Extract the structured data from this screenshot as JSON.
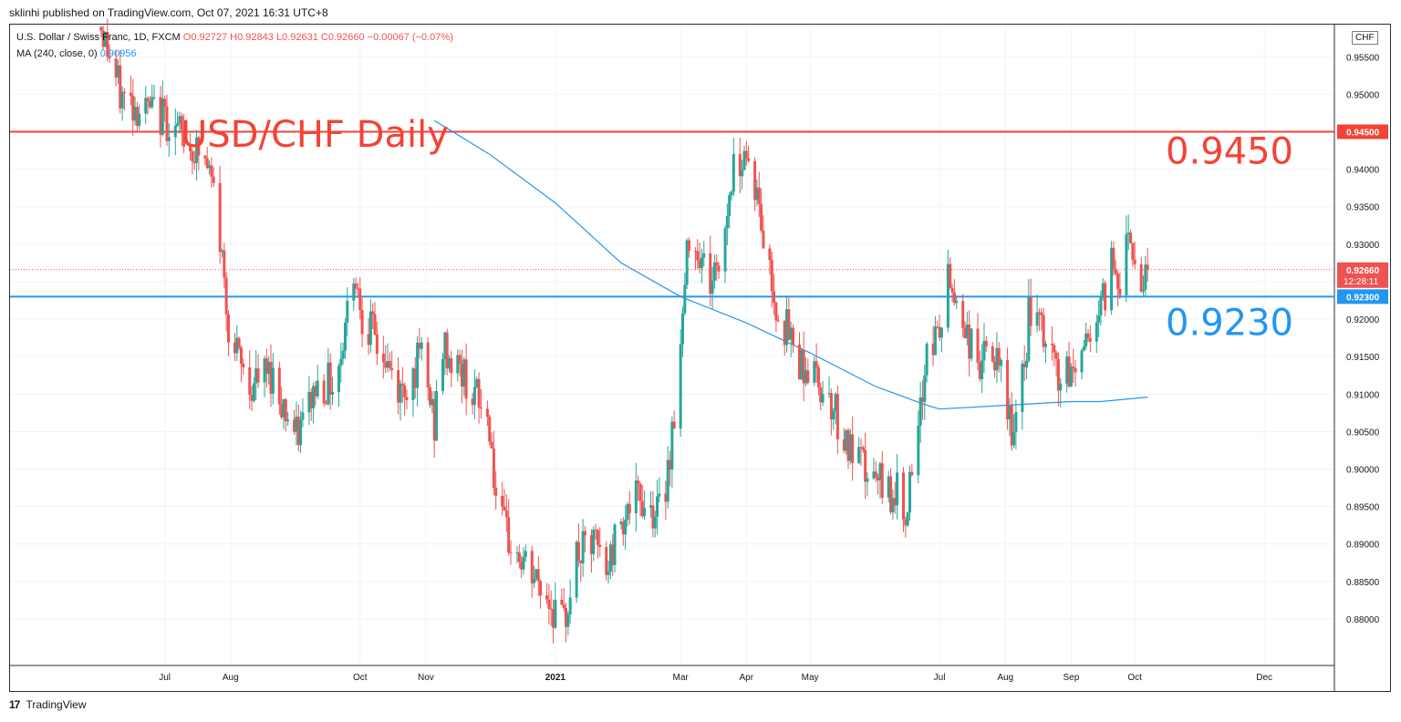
{
  "publish_line": "sklinhi published on TradingView.com, Oct 07, 2021 16:31 UTC+8",
  "legend": {
    "symbol": "U.S. Dollar / Swiss Franc, 1D, FXCM",
    "open": "O0.92727",
    "high": "H0.92843",
    "low": "L0.92631",
    "close": "C0.92660",
    "change": "−0.00067 (−0.07%)",
    "ma_label": "MA (240, close, 0)",
    "ma_value": "0.90956"
  },
  "currency_badge": "CHF",
  "footer": {
    "logo_glyph": "17",
    "brand": "TradingView"
  },
  "colors": {
    "up": "#26a69a",
    "down": "#ef5350",
    "ma": "#2196f3",
    "resistance": "#f44336",
    "support": "#2196f3"
  },
  "chart_data": {
    "type": "candlestick",
    "title": "USD/CHF Daily",
    "ylim": [
      0.8775,
      0.9585
    ],
    "y_ticks": [
      "0.95500",
      "0.95000",
      "0.94500",
      "0.94000",
      "0.93500",
      "0.93000",
      "0.92500",
      "0.92000",
      "0.91500",
      "0.91000",
      "0.90500",
      "0.90000",
      "0.89500",
      "0.89000",
      "0.88500",
      "0.88000"
    ],
    "x_ticks": [
      "Jul",
      "Aug",
      "Oct",
      "Nov",
      "2021",
      "Mar",
      "Apr",
      "May",
      "Jul",
      "Aug",
      "Sep",
      "Oct",
      "Dec"
    ],
    "horizontal_levels": [
      {
        "price": 0.945,
        "label": "0.9450",
        "axis_label": "0.94500",
        "color": "#f44336"
      },
      {
        "price": 0.923,
        "label": "0.9230",
        "axis_label": "0.92300",
        "color": "#2196f3"
      }
    ],
    "last_price": {
      "value": 0.9266,
      "label": "0.92660",
      "countdown": "12:28:11"
    },
    "price_path": [
      [
        "2020-06-01",
        0.959
      ],
      [
        "2020-06-10",
        0.95
      ],
      [
        "2020-06-20",
        0.948
      ],
      [
        "2020-07-01",
        0.947
      ],
      [
        "2020-07-10",
        0.944
      ],
      [
        "2020-07-20",
        0.941
      ],
      [
        "2020-07-25",
        0.936
      ],
      [
        "2020-07-29",
        0.925
      ],
      [
        "2020-08-01",
        0.917
      ],
      [
        "2020-08-10",
        0.911
      ],
      [
        "2020-08-20",
        0.913
      ],
      [
        "2020-09-01",
        0.904
      ],
      [
        "2020-09-10",
        0.911
      ],
      [
        "2020-09-20",
        0.912
      ],
      [
        "2020-09-28",
        0.927
      ],
      [
        "2020-10-02",
        0.921
      ],
      [
        "2020-10-10",
        0.916
      ],
      [
        "2020-10-20",
        0.91
      ],
      [
        "2020-10-30",
        0.915
      ],
      [
        "2020-11-05",
        0.906
      ],
      [
        "2020-11-09",
        0.916
      ],
      [
        "2020-11-20",
        0.912
      ],
      [
        "2020-12-01",
        0.906
      ],
      [
        "2020-12-05",
        0.893
      ],
      [
        "2020-12-15",
        0.888
      ],
      [
        "2020-12-28",
        0.883
      ],
      [
        "2021-01-05",
        0.879
      ],
      [
        "2021-01-10",
        0.888
      ],
      [
        "2021-01-20",
        0.89
      ],
      [
        "2021-01-25",
        0.886
      ],
      [
        "2021-02-01",
        0.894
      ],
      [
        "2021-02-10",
        0.896
      ],
      [
        "2021-02-20",
        0.894
      ],
      [
        "2021-02-25",
        0.905
      ],
      [
        "2021-03-01",
        0.916
      ],
      [
        "2021-03-05",
        0.932
      ],
      [
        "2021-03-10",
        0.929
      ],
      [
        "2021-03-15",
        0.925
      ],
      [
        "2021-03-20",
        0.928
      ],
      [
        "2021-03-25",
        0.939
      ],
      [
        "2021-03-31",
        0.943
      ],
      [
        "2021-04-05",
        0.938
      ],
      [
        "2021-04-10",
        0.929
      ],
      [
        "2021-04-15",
        0.922
      ],
      [
        "2021-04-25",
        0.915
      ],
      [
        "2021-05-01",
        0.913
      ],
      [
        "2021-05-10",
        0.91
      ],
      [
        "2021-05-20",
        0.902
      ],
      [
        "2021-06-01",
        0.898
      ],
      [
        "2021-06-10",
        0.897
      ],
      [
        "2021-06-15",
        0.895
      ],
      [
        "2021-06-20",
        0.9
      ],
      [
        "2021-06-25",
        0.917
      ],
      [
        "2021-07-01",
        0.918
      ],
      [
        "2021-07-05",
        0.925
      ],
      [
        "2021-07-10",
        0.922
      ],
      [
        "2021-07-15",
        0.917
      ],
      [
        "2021-07-20",
        0.914
      ],
      [
        "2021-07-25",
        0.916
      ],
      [
        "2021-08-01",
        0.91
      ],
      [
        "2021-08-05",
        0.904
      ],
      [
        "2021-08-10",
        0.913
      ],
      [
        "2021-08-12",
        0.921
      ],
      [
        "2021-08-20",
        0.917
      ],
      [
        "2021-08-28",
        0.911
      ],
      [
        "2021-09-05",
        0.915
      ],
      [
        "2021-09-10",
        0.919
      ],
      [
        "2021-09-15",
        0.921
      ],
      [
        "2021-09-20",
        0.928
      ],
      [
        "2021-09-25",
        0.925
      ],
      [
        "2021-09-28",
        0.933
      ],
      [
        "2021-10-03",
        0.925
      ],
      [
        "2021-10-07",
        0.9266
      ]
    ],
    "ma_240": [
      [
        "2020-11-05",
        0.9465
      ],
      [
        "2020-12-01",
        0.942
      ],
      [
        "2021-01-01",
        0.9355
      ],
      [
        "2021-02-01",
        0.9275
      ],
      [
        "2021-03-01",
        0.923
      ],
      [
        "2021-04-01",
        0.9195
      ],
      [
        "2021-05-01",
        0.9155
      ],
      [
        "2021-06-01",
        0.911
      ],
      [
        "2021-06-25",
        0.9085
      ],
      [
        "2021-07-01",
        0.908
      ],
      [
        "2021-08-01",
        0.9085
      ],
      [
        "2021-09-01",
        0.909
      ],
      [
        "2021-09-15",
        0.909
      ],
      [
        "2021-10-07",
        0.9096
      ]
    ]
  }
}
